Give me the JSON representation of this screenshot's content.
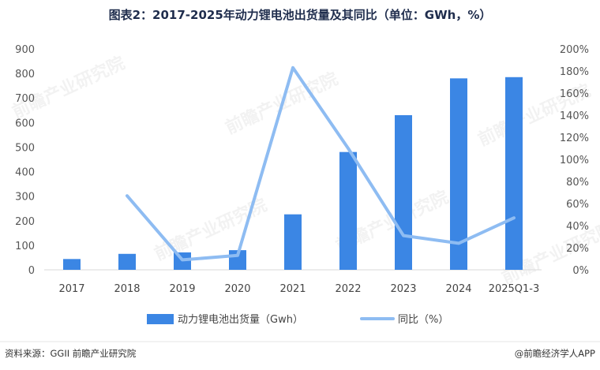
{
  "chart_data": {
    "type": "bar",
    "title": "图表2：2017-2025年动力锂电池出货量及其同比（单位：GWh，%）",
    "categories": [
      "2017",
      "2018",
      "2019",
      "2020",
      "2021",
      "2022",
      "2023",
      "2024",
      "2025Q1-3"
    ],
    "series": [
      {
        "name": "动力锂电池出货量（Gwh）",
        "type": "bar",
        "axis": "left",
        "color": "#3b86e4",
        "values": [
          44,
          65,
          71,
          80,
          226,
          480,
          630,
          780,
          785
        ]
      },
      {
        "name": "同比（%）",
        "type": "line",
        "axis": "right",
        "color": "#8ebcf2",
        "values": [
          null,
          67,
          9,
          13,
          183,
          110,
          31,
          24,
          47
        ]
      }
    ],
    "y_left": {
      "min": 0,
      "max": 900,
      "step": 100,
      "ticks": [
        "0",
        "100",
        "200",
        "300",
        "400",
        "500",
        "600",
        "700",
        "800",
        "900"
      ]
    },
    "y_right": {
      "min": 0,
      "max": 200,
      "step": 20,
      "ticks": [
        "0%",
        "20%",
        "40%",
        "60%",
        "80%",
        "100%",
        "120%",
        "140%",
        "160%",
        "180%",
        "200%"
      ]
    },
    "grid": false,
    "legend": "bottom"
  },
  "footer": {
    "source": "资料来源：GGII 前瞻产业研究院",
    "brand": "@前瞻经济学人APP"
  },
  "watermark": "前瞻产业研究院"
}
